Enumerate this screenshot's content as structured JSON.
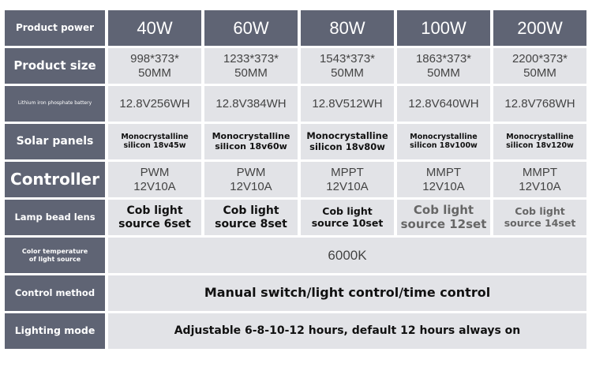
{
  "columns": [
    "40W",
    "60W",
    "80W",
    "100W",
    "200W"
  ],
  "rows": [
    {
      "label": "Product power"
    },
    {
      "label": "Product size",
      "values": [
        "998*373*\n50MM",
        "1233*373*\n50MM",
        "1543*373*\n50MM",
        "1863*373*\n50MM",
        "2200*373*\n50MM"
      ]
    },
    {
      "label": "Lithium iron phosphate battery",
      "values": [
        "12.8V256WH",
        "12.8V384WH",
        "12.8V512WH",
        "12.8V640WH",
        "12.8V768WH"
      ]
    },
    {
      "label": "Solar panels",
      "values": [
        "Monocrystalline\nsilicon 18v45w",
        "Monocrystalline\nsilicon 18v60w",
        "Monocrystalline\nsilicon 18v80w",
        "Monocrystalline\nsilicon 18v100w",
        "Monocrystalline\nsilicon 18v120w"
      ]
    },
    {
      "label": "Controller",
      "values": [
        "PWM\n12V10A",
        "PWM\n12V10A",
        "MPPT\n12V10A",
        "MMPT\n12V10A",
        "MMPT\n12V10A"
      ]
    },
    {
      "label": "Lamp bead lens",
      "values": [
        "Cob light\nsource 6set",
        "Cob light\nsource 8set",
        "Cob light\nsource 10set",
        "Cob light\nsource 12set",
        "Cob light\nsource 14set"
      ]
    },
    {
      "label": "Color temperature\nof light source",
      "value": "6000K"
    },
    {
      "label": "Control method",
      "value": "Manual switch/light control/time control"
    },
    {
      "label": "Lighting mode",
      "value": "Adjustable 6-8-10-12 hours, default 12 hours always on"
    }
  ]
}
